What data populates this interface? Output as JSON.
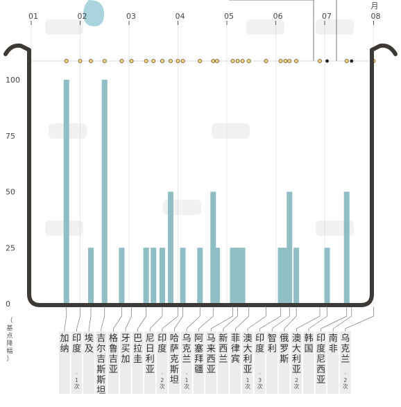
{
  "chart_data": {
    "type": "bar",
    "title": "",
    "ylabel": "（基点降幅）",
    "xlabel": "",
    "ylim": [
      0,
      100
    ],
    "yticks": [
      0,
      25,
      50,
      75,
      100
    ],
    "months": [
      "01",
      "02",
      "03",
      "04",
      "05",
      "06",
      "07",
      "08"
    ],
    "month_unit": "月",
    "categories": [
      {
        "name": "加纳",
        "note": "",
        "value": 100,
        "month_pos": 1.72
      },
      {
        "name": "印度",
        "note": "·1次",
        "value": 0,
        "month_pos": 2.0
      },
      {
        "name": "埃及",
        "note": "",
        "value": 25,
        "month_pos": 2.22
      },
      {
        "name": "吉尔吉斯斯坦",
        "note": "",
        "value": 100,
        "month_pos": 2.5
      },
      {
        "name": "格鲁吉亚",
        "note": "",
        "value": 25,
        "month_pos": 2.85
      },
      {
        "name": "牙买加",
        "note": "",
        "value": 0,
        "month_pos": 3.05
      },
      {
        "name": "巴拉圭",
        "note": "",
        "value": 25,
        "month_pos": 3.35
      },
      {
        "name": "",
        "note": "",
        "value": 25,
        "month_pos": 3.5
      },
      {
        "name": "尼日利亚",
        "note": "",
        "value": 25,
        "month_pos": 3.68
      },
      {
        "name": "",
        "note": "",
        "value": 50,
        "month_pos": 3.85
      },
      {
        "name": "印度",
        "note": "·2次",
        "value": 0,
        "month_pos": 4.0
      },
      {
        "name": "哈萨克斯坦",
        "note": "",
        "value": 25,
        "month_pos": 4.1
      },
      {
        "name": "乌克兰",
        "note": "·1次",
        "value": 25,
        "month_pos": 4.45
      },
      {
        "name": "阿塞拜疆",
        "note": "",
        "value": 50,
        "month_pos": 4.72
      },
      {
        "name": "",
        "note": "",
        "value": 25,
        "month_pos": 4.8
      },
      {
        "name": "马来西亚",
        "note": "",
        "value": 25,
        "month_pos": 5.12
      },
      {
        "name": "新西兰",
        "note": "",
        "value": 25,
        "month_pos": 5.22
      },
      {
        "name": "",
        "note": "",
        "value": 25,
        "month_pos": 5.32
      },
      {
        "name": "菲律宾",
        "note": "",
        "value": 0,
        "month_pos": 5.45
      },
      {
        "name": "澳大利亚",
        "note": "·1次",
        "value": 0,
        "month_pos": 5.8
      },
      {
        "name": "印度",
        "note": "·3次",
        "value": 25,
        "month_pos": 6.1
      },
      {
        "name": "",
        "note": "",
        "value": 25,
        "month_pos": 6.2
      },
      {
        "name": "智利",
        "note": "",
        "value": 50,
        "month_pos": 6.28
      },
      {
        "name": "俄罗斯",
        "note": "",
        "value": 25,
        "month_pos": 6.42
      },
      {
        "name": "澳大利亚",
        "note": "·2次",
        "value": 0,
        "month_pos": 6.9
      },
      {
        "name": "韩国",
        "note": "",
        "value": 25,
        "month_pos": 7.05
      },
      {
        "name": "印度尼西亚",
        "note": "",
        "value": 50,
        "month_pos": 7.45
      },
      {
        "name": "南非",
        "note": "",
        "value": 0,
        "month_pos": 7.55
      },
      {
        "name": "乌克兰",
        "note": "·2次",
        "value": 0,
        "month_pos": 8.0
      }
    ],
    "grid": false,
    "legend": "none"
  }
}
